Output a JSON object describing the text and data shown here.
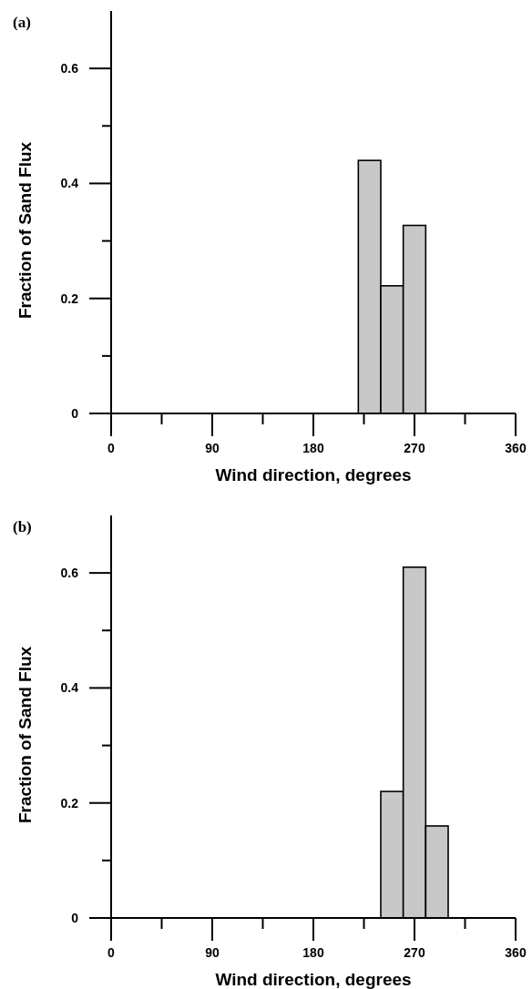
{
  "chart_data": [
    {
      "type": "histogram",
      "title": "(a)",
      "xlabel": "Wind direction, degrees",
      "ylabel": "Fraction of Sand Flux",
      "bins": [
        220,
        240,
        260,
        280
      ],
      "values": [
        0.44,
        0.222,
        0.327
      ],
      "color": "#c8c8c8",
      "xlim": [
        0,
        360
      ],
      "xticks": [
        0,
        {
          "value": 45,
          "label": null
        },
        90,
        {
          "value": 135,
          "label": null
        },
        180,
        {
          "value": 225,
          "label": null
        },
        270,
        {
          "value": 315,
          "label": null
        },
        360
      ],
      "ylim": [
        0,
        0.7
      ],
      "yticks": [
        0,
        {
          "value": 0.1,
          "label": null
        },
        0.2,
        {
          "value": 0.3,
          "label": null
        },
        0.4,
        {
          "value": 0.5,
          "label": null
        },
        0.6
      ],
      "grid": false
    },
    {
      "type": "histogram",
      "title": "(b)",
      "xlabel": "Wind direction, degrees",
      "ylabel": "Fraction of Sand Flux",
      "bins": [
        240,
        260,
        280,
        300
      ],
      "values": [
        0.22,
        0.61,
        0.16
      ],
      "color": "#c8c8c8",
      "xlim": [
        0,
        360
      ],
      "xticks": [
        0,
        {
          "value": 45,
          "label": null
        },
        90,
        {
          "value": 135,
          "label": null
        },
        180,
        {
          "value": 225,
          "label": null
        },
        270,
        {
          "value": 315,
          "label": null
        },
        360
      ],
      "ylim": [
        0,
        0.7
      ],
      "yticks": [
        0,
        {
          "value": 0.1,
          "label": null
        },
        0.2,
        {
          "value": 0.3,
          "label": null
        },
        0.4,
        {
          "value": 0.5,
          "label": null
        },
        0.6
      ],
      "grid": false
    }
  ]
}
